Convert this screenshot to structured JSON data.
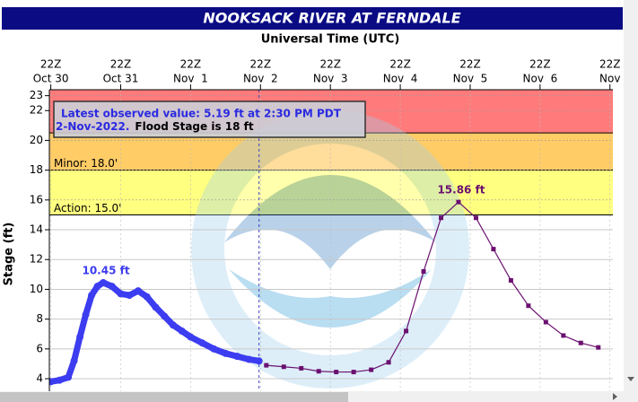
{
  "chart_data": {
    "type": "line",
    "title": "NOOKSACK RIVER AT FERNDALE",
    "subtitle": "Universal Time (UTC)",
    "y_label": "Stage (ft)",
    "xlim": [
      "10-30 21:30",
      "11-07 23:00"
    ],
    "xticks": [
      {
        "value": "10-30 22:00",
        "label": [
          "22Z",
          "Oct 30"
        ]
      },
      {
        "value": "10-31 22:00",
        "label": [
          "22Z",
          "Oct 31"
        ]
      },
      {
        "value": "11-01 22:00",
        "label": [
          "22Z",
          "Nov  1"
        ]
      },
      {
        "value": "11-02 22:00",
        "label": [
          "22Z",
          "Nov  2"
        ]
      },
      {
        "value": "11-03 22:00",
        "label": [
          "22Z",
          "Nov  3"
        ]
      },
      {
        "value": "11-04 22:00",
        "label": [
          "22Z",
          "Nov  4"
        ]
      },
      {
        "value": "11-05 22:00",
        "label": [
          "22Z",
          "Nov  5"
        ]
      },
      {
        "value": "11-06 22:00",
        "label": [
          "22Z",
          "Nov  6"
        ]
      },
      {
        "value": "11-07 22:00",
        "label": [
          "22Z",
          "Nov"
        ]
      }
    ],
    "ylim": [
      3.4,
      23.4
    ],
    "yticks": [
      4,
      6,
      8,
      10,
      12,
      14,
      16,
      18,
      20,
      22,
      23
    ],
    "grid": true,
    "flood_categories": [
      {
        "label": "Action: 15.0'",
        "lower": 15,
        "upper": 18,
        "color": "#ffff80"
      },
      {
        "label": "Minor: 18.0'",
        "lower": 18,
        "upper": 20.5,
        "color": "#ffcc66"
      },
      {
        "lower": 20.5,
        "upper": 23.4,
        "color": "#ff7b7b"
      }
    ],
    "series": [
      {
        "color": "#3c3cf0",
        "x": [
          "10-30 22:00",
          "10-31 01:00",
          "10-31 04:00",
          "10-31 06:00",
          "10-31 08:00",
          "10-31 10:00",
          "10-31 12:00",
          "10-31 14:00",
          "10-31 16:00",
          "10-31 19:00",
          "10-31 22:00",
          "11-01 01:00",
          "11-01 04:00",
          "11-01 07:00",
          "11-01 10:00",
          "11-01 13:00",
          "11-01 16:00",
          "11-01 19:00",
          "11-01 22:00",
          "11-02 02:00",
          "11-02 06:00",
          "11-02 10:00",
          "11-02 14:00",
          "11-02 18:00",
          "11-02 21:30"
        ],
        "values": [
          3.8,
          3.9,
          4.1,
          5.2,
          6.8,
          8.3,
          9.6,
          10.2,
          10.45,
          10.2,
          9.7,
          9.6,
          9.9,
          9.5,
          8.8,
          8.2,
          7.6,
          7.2,
          6.8,
          6.4,
          6.0,
          5.7,
          5.5,
          5.3,
          5.19
        ]
      },
      {
        "color": "#6b1070",
        "x": [
          "11-03 00:00",
          "11-03 06:00",
          "11-03 12:00",
          "11-03 18:00",
          "11-04 00:00",
          "11-04 06:00",
          "11-04 12:00",
          "11-04 18:00",
          "11-05 00:00",
          "11-05 06:00",
          "11-05 12:00",
          "11-05 18:00",
          "11-06 00:00",
          "11-06 06:00",
          "11-06 12:00",
          "11-06 18:00",
          "11-07 00:00",
          "11-07 06:00",
          "11-07 12:00",
          "11-07 18:00"
        ],
        "values": [
          4.9,
          4.8,
          4.7,
          4.5,
          4.45,
          4.45,
          4.6,
          5.1,
          7.2,
          11.2,
          14.8,
          15.86,
          14.8,
          12.7,
          10.6,
          8.9,
          7.8,
          6.9,
          6.4,
          6.1
        ]
      }
    ],
    "annotations": [
      {
        "text": "10.45 ft",
        "x": "10-31 16:00",
        "value": 10.45,
        "color": "#3c3cf0"
      },
      {
        "text": "15.86 ft",
        "x": "11-05 18:00",
        "value": 15.86,
        "color": "#6b1070"
      }
    ],
    "now": "11-02 21:30",
    "status": {
      "line1": "Latest observed value: 5.19 ft at 2:30 PM PDT",
      "date": "2-Nov-2022.",
      "flood_stage": "Flood Stage is 18 ft"
    }
  }
}
